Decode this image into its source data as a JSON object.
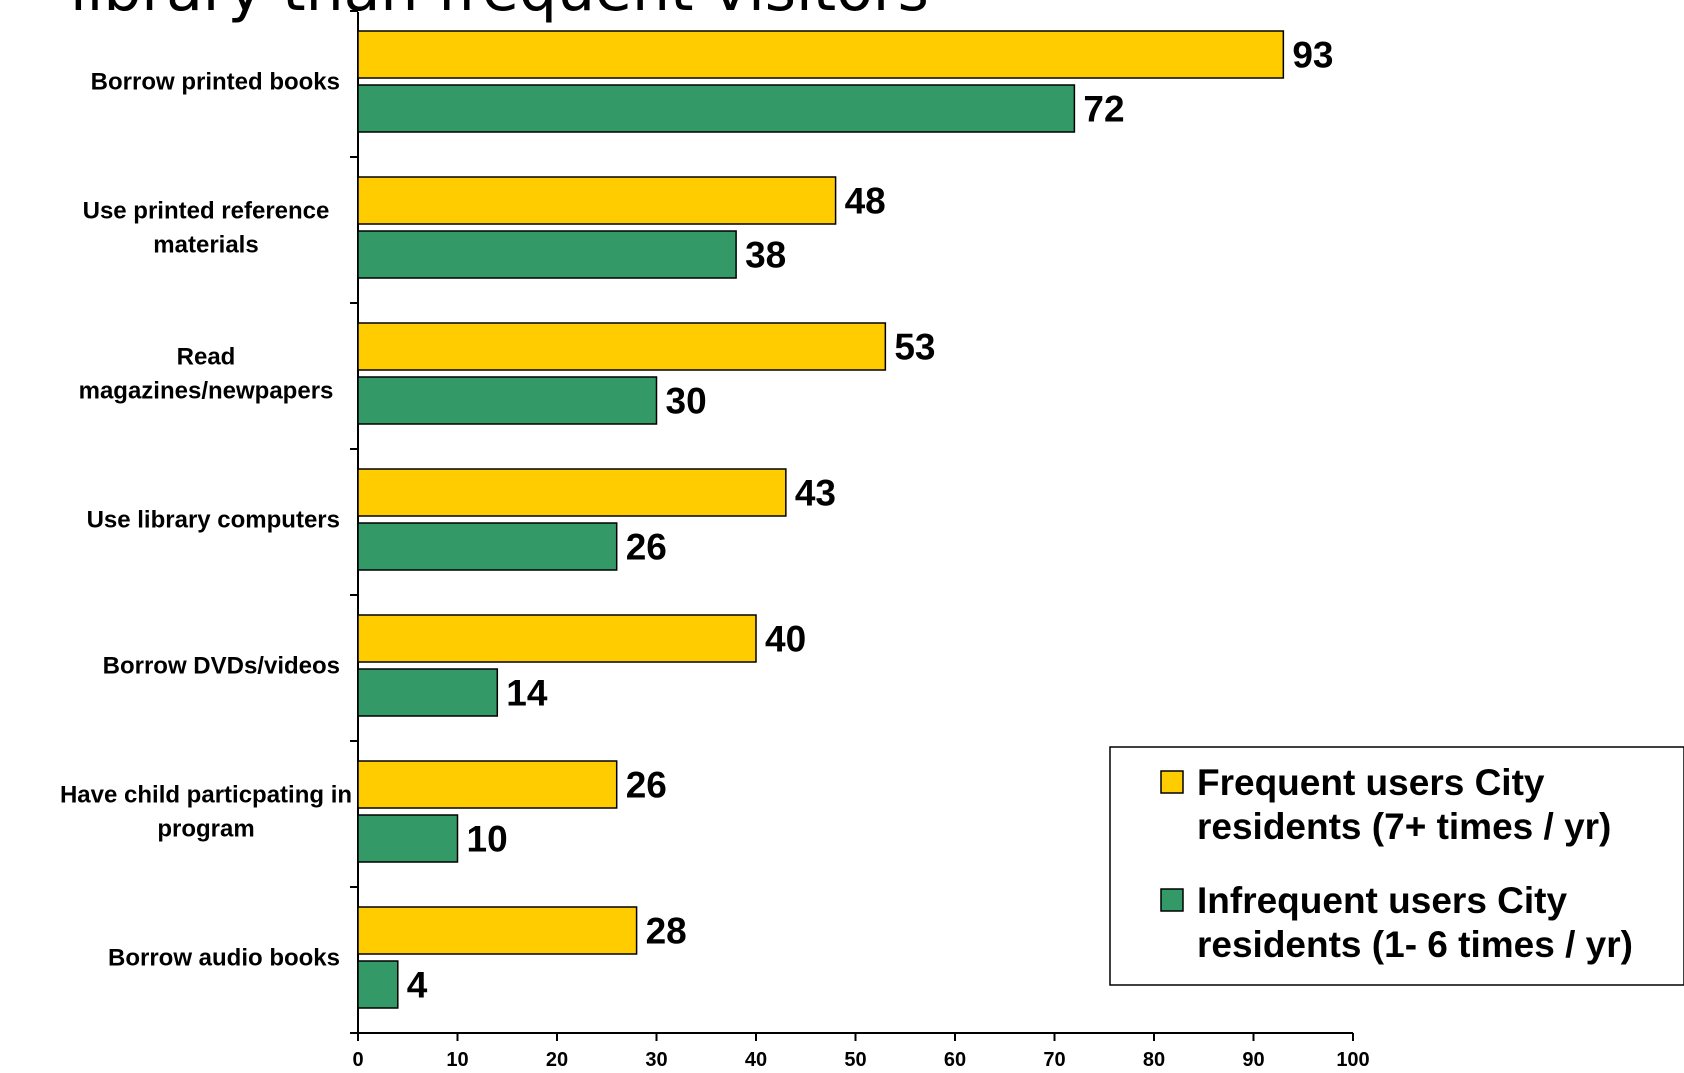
{
  "chart_data": {
    "type": "bar",
    "orientation": "horizontal",
    "title": "library than frequent visitors",
    "categories": [
      [
        "Borrow printed books"
      ],
      [
        "Use printed reference",
        "materials"
      ],
      [
        "Read",
        "magazines/newpapers"
      ],
      [
        "Use library computers"
      ],
      [
        "Borrow DVDs/videos"
      ],
      [
        "Have child particpating in",
        "program"
      ],
      [
        "Borrow audio books"
      ]
    ],
    "series": [
      {
        "name_lines": [
          "Frequent users City",
          "residents (7+ times / yr)"
        ],
        "color": "#FFCC00",
        "values": [
          93,
          48,
          53,
          43,
          40,
          26,
          28
        ]
      },
      {
        "name_lines": [
          "Infrequent users City",
          "residents (1- 6 times / yr)"
        ],
        "color": "#339966",
        "values": [
          72,
          38,
          30,
          26,
          14,
          10,
          4
        ]
      }
    ],
    "xlim": [
      0,
      100
    ],
    "xticks": [
      0,
      10,
      20,
      30,
      40,
      50,
      60,
      70,
      80,
      90,
      100
    ],
    "grid": false,
    "legend_position": "bottom-right"
  }
}
